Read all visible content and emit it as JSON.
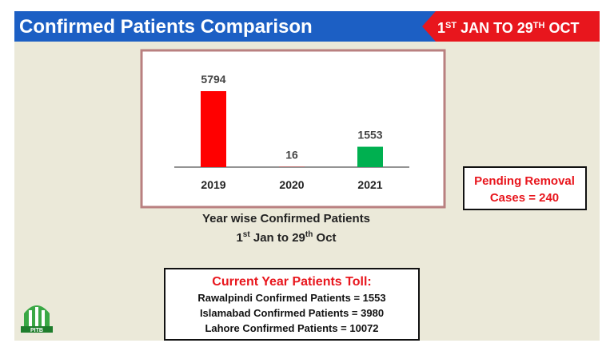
{
  "header": {
    "title": "Confirmed Patients Comparison",
    "date_range": [
      "1",
      "ST",
      " JAN TO 29",
      "TH",
      " OCT"
    ]
  },
  "chart_data": {
    "type": "bar",
    "categories": [
      "2019",
      "2020",
      "2021"
    ],
    "values": [
      5794,
      16,
      1553
    ],
    "colors": [
      "#ff0000",
      "#ff0000",
      "#00b050"
    ]
  },
  "caption": {
    "line1": "Year wise Confirmed Patients",
    "line2": [
      "1",
      "st",
      " Jan to 29",
      "th",
      " Oct"
    ]
  },
  "pending": {
    "lines": [
      "Pending Removal",
      "Cases = 240"
    ]
  },
  "toll": {
    "title": "Current Year Patients Toll:",
    "lines": [
      "Rawalpindi Confirmed Patients = 1553",
      "Islamabad Confirmed Patients = 3980",
      "Lahore Confirmed Patients = 10072"
    ]
  },
  "logo": {
    "label": "PITB"
  }
}
